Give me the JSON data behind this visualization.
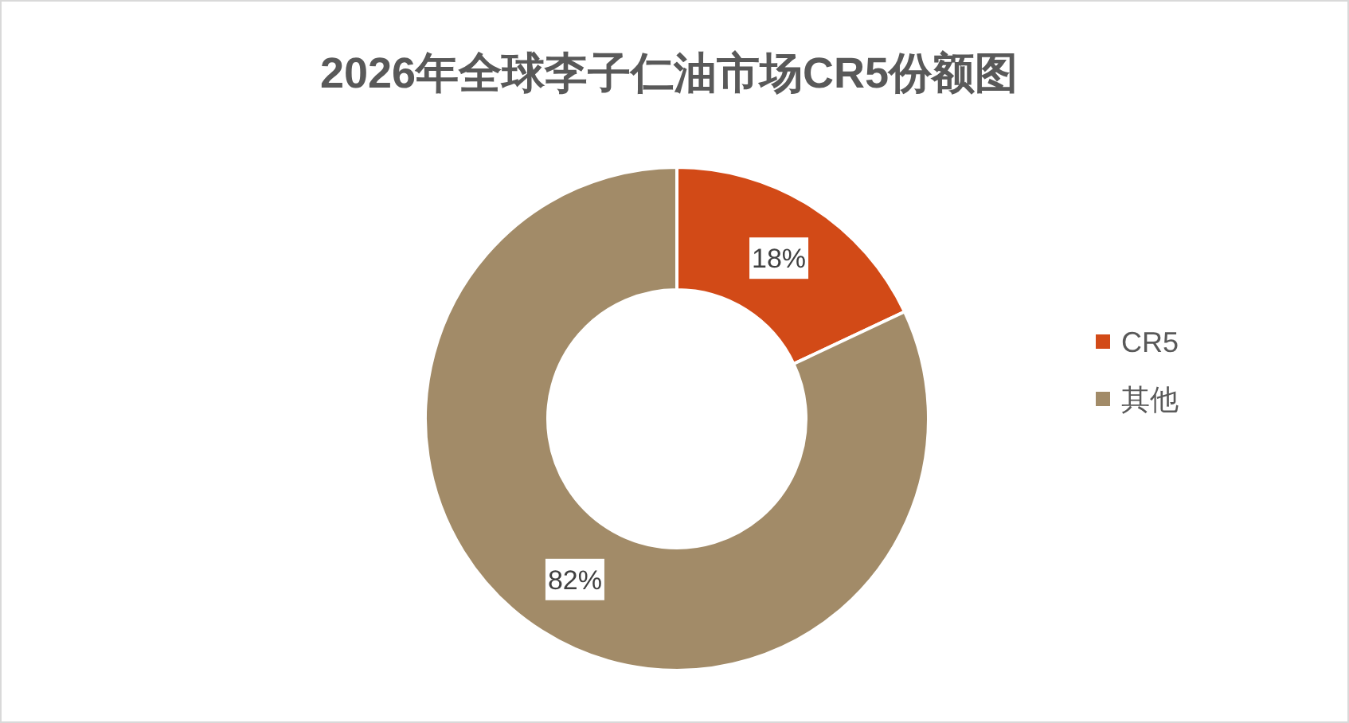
{
  "chart_data": {
    "type": "donut",
    "title": "2026年全球李子仁油市场CR5份额图",
    "categories": [
      "CR5",
      "其他"
    ],
    "values": [
      18,
      82
    ],
    "colors": [
      "#d24a17",
      "#a28b68"
    ],
    "value_labels": [
      "18%",
      "82%"
    ],
    "legend": "right"
  }
}
